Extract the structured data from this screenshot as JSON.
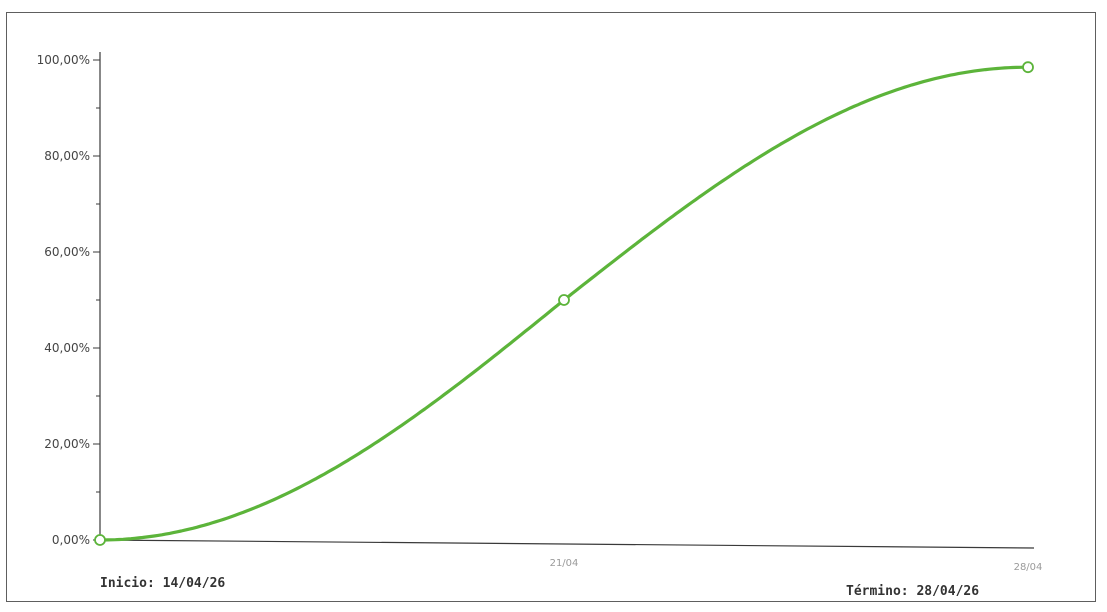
{
  "chart_data": {
    "type": "line",
    "x": [
      "14/04",
      "21/04",
      "28/04"
    ],
    "y": [
      0.0,
      50.0,
      98.5
    ],
    "x_tick_labels": [
      "21/04",
      "28/04"
    ],
    "y_ticks": [
      "0,00%",
      "20,00%",
      "40,00%",
      "60,00%",
      "80,00%",
      "100,00%"
    ],
    "ylim": [
      0,
      100
    ],
    "grid": false,
    "line_color": "#5cb43a",
    "marker_fill": "#ffffff",
    "start_label": "Inicio: 14/04/26",
    "end_label": "Término: 28/04/26"
  }
}
